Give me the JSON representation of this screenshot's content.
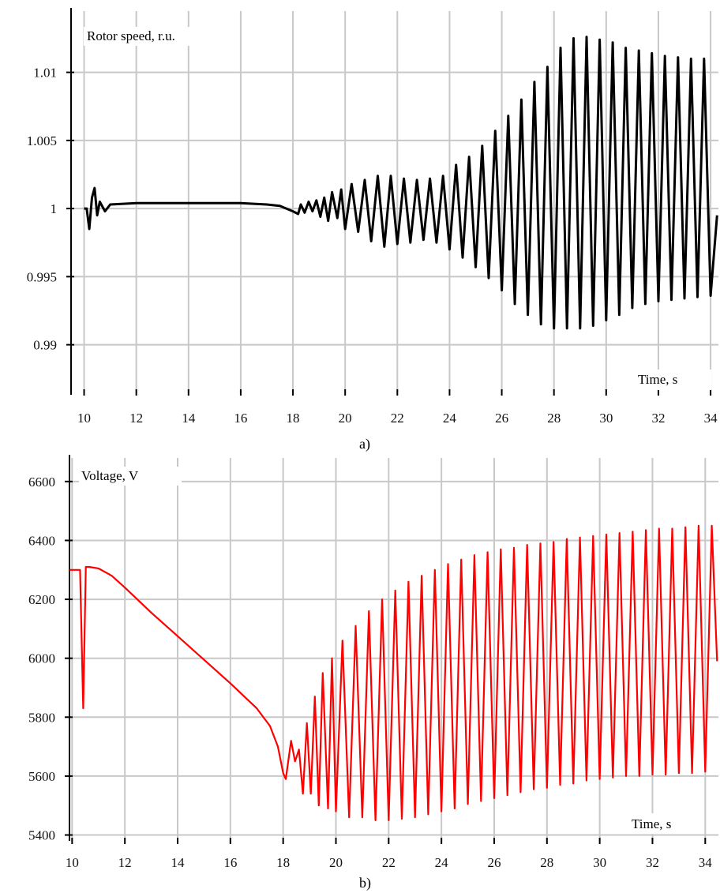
{
  "figure": {
    "caption_a": "a)",
    "caption_b": "b)"
  },
  "chart_data": [
    {
      "type": "line",
      "title": "Rotor speed, r.u.",
      "xlabel": "Time, s",
      "ylabel": "",
      "xlim": [
        9.5,
        34.3
      ],
      "ylim": [
        0.9865,
        1.0145
      ],
      "x_ticks": [
        10,
        12,
        14,
        16,
        18,
        20,
        22,
        24,
        26,
        28,
        30,
        32,
        34
      ],
      "x_tick_labels": [
        "10",
        "12",
        "14",
        "16",
        "18",
        "20",
        "22",
        "24",
        "26",
        "28",
        "30",
        "32",
        "34"
      ],
      "y_ticks": [
        0.99,
        0.995,
        1,
        1.005,
        1.01
      ],
      "y_tick_labels": [
        "0.99",
        "0.995",
        "1",
        "1.005",
        "1.01"
      ],
      "grid": true,
      "color": "#000000",
      "series": [
        {
          "x": [
            10.0,
            10.1,
            10.2,
            10.3,
            10.4,
            10.5,
            10.6,
            10.8,
            11.0,
            12.0,
            14.0,
            16.0,
            17.0,
            17.5,
            18.0,
            18.2,
            18.3,
            18.45,
            18.6,
            18.75,
            18.9,
            19.05,
            19.2,
            19.35,
            19.5,
            19.7,
            19.85,
            20.0,
            20.25,
            20.5,
            20.75,
            21.0,
            21.25,
            21.5,
            21.75,
            22.0,
            22.25,
            22.5,
            22.75,
            23.0,
            23.25,
            23.5,
            23.75,
            24.0,
            24.25,
            24.5,
            24.75,
            25.0,
            25.25,
            25.5,
            25.75,
            26.0,
            26.25,
            26.5,
            26.75,
            27.0,
            27.25,
            27.5,
            27.75,
            28.0,
            28.25,
            28.5,
            28.75,
            29.0,
            29.25,
            29.5,
            29.75,
            30.0,
            30.25,
            30.5,
            30.75,
            31.0,
            31.25,
            31.5,
            31.75,
            32.0,
            32.25,
            32.5,
            32.75,
            33.0,
            33.25,
            33.5,
            33.75,
            34.0,
            34.25
          ],
          "y": [
            1.0,
            1.0,
            0.9985,
            1.0008,
            1.0015,
            0.9995,
            1.0005,
            0.9998,
            1.0003,
            1.0004,
            1.0004,
            1.0004,
            1.0003,
            1.0002,
            0.9998,
            0.9996,
            1.0003,
            0.9997,
            1.0005,
            0.9998,
            1.0006,
            0.9994,
            1.0008,
            0.9991,
            1.0012,
            0.9993,
            1.0014,
            0.9985,
            1.0018,
            0.9983,
            1.0021,
            0.9976,
            1.0024,
            0.9972,
            1.0024,
            0.9974,
            1.0022,
            0.9975,
            1.0021,
            0.9977,
            1.0022,
            0.9975,
            1.0024,
            0.997,
            1.0032,
            0.9964,
            1.0038,
            0.9957,
            1.0046,
            0.9949,
            1.0057,
            0.994,
            1.0068,
            0.993,
            1.008,
            0.9922,
            1.0093,
            0.9915,
            1.0104,
            0.9912,
            1.0118,
            0.9912,
            1.0125,
            0.9912,
            1.0126,
            0.9914,
            1.0124,
            0.9918,
            1.0122,
            0.9922,
            1.0118,
            0.9927,
            1.0116,
            0.993,
            1.0114,
            0.9932,
            1.0112,
            0.9933,
            1.0111,
            0.9934,
            1.011,
            0.9935,
            1.011,
            0.9936,
            0.9995
          ]
        }
      ]
    },
    {
      "type": "line",
      "title": "Voltage, V",
      "xlabel": "Time, s",
      "ylabel": "",
      "xlim": [
        9.9,
        34.5
      ],
      "ylim": [
        5380,
        6680
      ],
      "x_ticks": [
        10,
        12,
        14,
        16,
        18,
        20,
        22,
        24,
        26,
        28,
        30,
        32,
        34
      ],
      "x_tick_labels": [
        "10",
        "12",
        "14",
        "16",
        "18",
        "20",
        "22",
        "24",
        "26",
        "28",
        "30",
        "32",
        "34"
      ],
      "y_ticks": [
        5400,
        5600,
        5800,
        6000,
        6200,
        6400,
        6600
      ],
      "y_tick_labels": [
        "5400",
        "5600",
        "5800",
        "6000",
        "6200",
        "6400",
        "6600"
      ],
      "grid": true,
      "color": "#ff0000",
      "series": [
        {
          "x": [
            9.9,
            10.3,
            10.42,
            10.52,
            10.65,
            11.0,
            11.5,
            12.0,
            13.0,
            14.0,
            15.0,
            16.0,
            17.0,
            17.5,
            17.8,
            18.0,
            18.1,
            18.3,
            18.45,
            18.6,
            18.75,
            18.9,
            19.05,
            19.2,
            19.35,
            19.5,
            19.7,
            19.85,
            20.0,
            20.25,
            20.5,
            20.75,
            21.0,
            21.25,
            21.5,
            21.75,
            22.0,
            22.25,
            22.5,
            22.75,
            23.0,
            23.25,
            23.5,
            23.75,
            24.0,
            24.25,
            24.5,
            24.75,
            25.0,
            25.25,
            25.5,
            25.75,
            26.0,
            26.25,
            26.5,
            26.75,
            27.0,
            27.25,
            27.5,
            27.75,
            28.0,
            28.25,
            28.5,
            28.75,
            29.0,
            29.25,
            29.5,
            29.75,
            30.0,
            30.25,
            30.5,
            30.75,
            31.0,
            31.25,
            31.5,
            31.75,
            32.0,
            32.25,
            32.5,
            32.75,
            33.0,
            33.25,
            33.5,
            33.75,
            34.0,
            34.25,
            34.45
          ],
          "y": [
            6300,
            6300,
            5830,
            6310,
            6310,
            6305,
            6280,
            6240,
            6155,
            6075,
            5995,
            5915,
            5830,
            5770,
            5700,
            5610,
            5590,
            5720,
            5650,
            5690,
            5540,
            5780,
            5540,
            5870,
            5500,
            5950,
            5490,
            6000,
            5480,
            6060,
            5460,
            6110,
            5460,
            6160,
            5450,
            6200,
            5450,
            6230,
            5455,
            6260,
            5460,
            6280,
            5470,
            6300,
            5480,
            6320,
            5490,
            6335,
            5505,
            6350,
            5515,
            6360,
            5525,
            6370,
            5535,
            6375,
            5545,
            6385,
            5555,
            6390,
            5560,
            6395,
            5570,
            6405,
            5575,
            6410,
            5585,
            6415,
            5590,
            6420,
            5595,
            6425,
            5600,
            6430,
            5600,
            6435,
            5605,
            6440,
            5605,
            6440,
            5610,
            6445,
            5610,
            6450,
            5615,
            6450,
            5990
          ]
        }
      ]
    }
  ]
}
